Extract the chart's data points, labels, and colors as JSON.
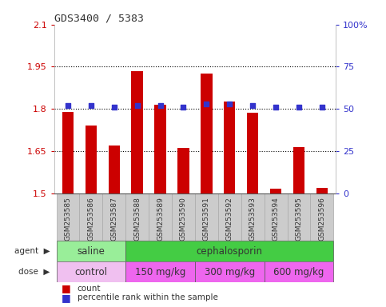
{
  "title": "GDS3400 / 5383",
  "samples": [
    "GSM253585",
    "GSM253586",
    "GSM253587",
    "GSM253588",
    "GSM253589",
    "GSM253590",
    "GSM253591",
    "GSM253592",
    "GSM253593",
    "GSM253594",
    "GSM253595",
    "GSM253596"
  ],
  "bar_values": [
    1.79,
    1.74,
    1.67,
    1.935,
    1.815,
    1.66,
    1.925,
    1.825,
    1.785,
    1.515,
    1.665,
    1.52
  ],
  "dot_values": [
    52,
    52,
    51,
    52,
    52,
    51,
    53,
    53,
    52,
    51,
    51,
    51
  ],
  "ylim_left": [
    1.5,
    2.1
  ],
  "ylim_right": [
    0,
    100
  ],
  "yticks_left": [
    1.5,
    1.65,
    1.8,
    1.95,
    2.1
  ],
  "yticks_right": [
    0,
    25,
    50,
    75,
    100
  ],
  "ytick_labels_left": [
    "1.5",
    "1.65",
    "1.8",
    "1.95",
    "2.1"
  ],
  "ytick_labels_right": [
    "0",
    "25",
    "50",
    "75",
    "100%"
  ],
  "hlines": [
    1.65,
    1.8,
    1.95
  ],
  "bar_color": "#cc0000",
  "dot_color": "#3333cc",
  "bar_width": 0.5,
  "agent_groups": [
    {
      "label": "saline",
      "start": 0,
      "end": 3,
      "color": "#99ee99"
    },
    {
      "label": "cephalosporin",
      "start": 3,
      "end": 12,
      "color": "#44cc44"
    }
  ],
  "dose_groups": [
    {
      "label": "control",
      "start": 0,
      "end": 3,
      "color": "#f0c0f0"
    },
    {
      "label": "150 mg/kg",
      "start": 3,
      "end": 6,
      "color": "#ee66ee"
    },
    {
      "label": "300 mg/kg",
      "start": 6,
      "end": 9,
      "color": "#ee66ee"
    },
    {
      "label": "600 mg/kg",
      "start": 9,
      "end": 12,
      "color": "#ee66ee"
    }
  ],
  "left_axis_color": "#cc0000",
  "right_axis_color": "#3333cc",
  "tick_bg_color": "#cccccc",
  "plot_bg_color": "#ffffff"
}
